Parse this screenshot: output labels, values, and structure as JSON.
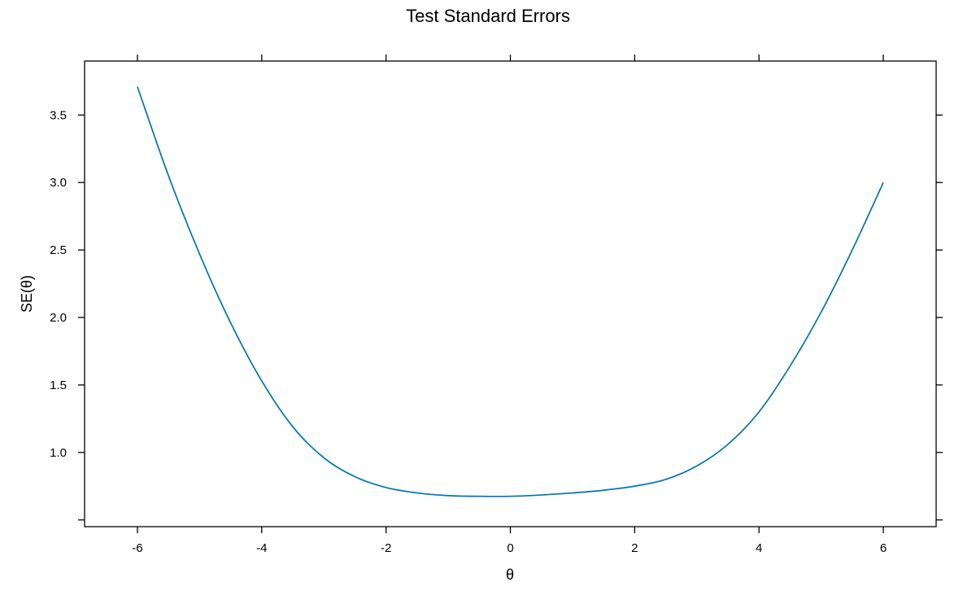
{
  "chart_data": {
    "type": "line",
    "title": "Test Standard Errors",
    "xlabel": "θ",
    "ylabel": "SE(θ)",
    "xlim": [
      -6.85,
      6.85
    ],
    "ylim": [
      0.45,
      3.9
    ],
    "xticks": [
      -6,
      -4,
      -2,
      0,
      2,
      4,
      6
    ],
    "yticks": [
      1.0,
      1.5,
      2.0,
      2.5,
      3.0,
      3.5
    ],
    "ytick_extra": [
      0.5
    ],
    "ytick_labels": [
      "1.0",
      "1.5",
      "2.0",
      "2.5",
      "3.0",
      "3.5"
    ],
    "grid": false,
    "series": [
      {
        "color": "#0072B2",
        "x": [
          -6.0,
          -5.5,
          -5.0,
          -4.5,
          -4.0,
          -3.5,
          -3.0,
          -2.5,
          -2.0,
          -1.5,
          -1.0,
          -0.5,
          0.0,
          0.5,
          1.0,
          1.5,
          2.0,
          2.5,
          3.0,
          3.5,
          4.0,
          4.5,
          5.0,
          5.5,
          6.0
        ],
        "y": [
          3.71,
          3.05,
          2.47,
          1.96,
          1.53,
          1.19,
          0.96,
          0.82,
          0.74,
          0.7,
          0.68,
          0.675,
          0.675,
          0.685,
          0.7,
          0.72,
          0.75,
          0.8,
          0.9,
          1.06,
          1.3,
          1.64,
          2.04,
          2.5,
          3.0
        ]
      }
    ]
  }
}
